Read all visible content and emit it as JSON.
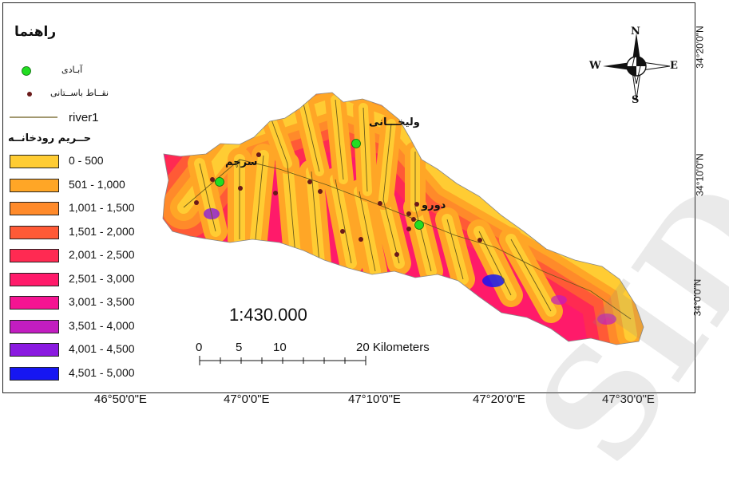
{
  "legend": {
    "title": "راهنما",
    "settlement_label": "آبـادی",
    "archaeological_label": "نقــاط باســتانی",
    "river_label": "river1",
    "buffer_title": "حــریم رودخانــه",
    "classes": [
      {
        "label": "0 - 500",
        "color": "#ffcc33"
      },
      {
        "label": "501 - 1,000",
        "color": "#ffa626"
      },
      {
        "label": "1,001 - 1,500",
        "color": "#ff8a2a"
      },
      {
        "label": "1,501 - 2,000",
        "color": "#ff5a36"
      },
      {
        "label": "2,001 - 2,500",
        "color": "#ff2a52"
      },
      {
        "label": "2,501 - 3,000",
        "color": "#ff1a6a"
      },
      {
        "label": "3,001 - 3,500",
        "color": "#f51492"
      },
      {
        "label": "3,501 - 4,000",
        "color": "#c21dc0"
      },
      {
        "label": "4,001 - 4,500",
        "color": "#8a1ae0"
      },
      {
        "label": "4,501 - 5,000",
        "color": "#1616f2"
      }
    ]
  },
  "map": {
    "scale_ratio": "1:430.000",
    "scalebar_labels": [
      "0",
      "5",
      "10",
      "20 Kilometers"
    ],
    "north_arrow": {
      "n": "N",
      "s": "S",
      "e": "E",
      "w": "W"
    },
    "longitude_labels": [
      "46°50'0\"E",
      "47°0'0\"E",
      "47°10'0\"E",
      "47°20'0\"E",
      "47°30'0\"E"
    ],
    "latitude_labels": [
      "34°20'0\"N",
      "34°10'0\"N",
      "34°0'0\"N"
    ],
    "places": [
      "ولیخـــانی",
      "سرچم",
      "دورو"
    ],
    "watermark": "SID"
  },
  "colors": {
    "settlement": "#22dd22",
    "archaeological": "#6a1a1a",
    "river": "#6b5a1a"
  }
}
